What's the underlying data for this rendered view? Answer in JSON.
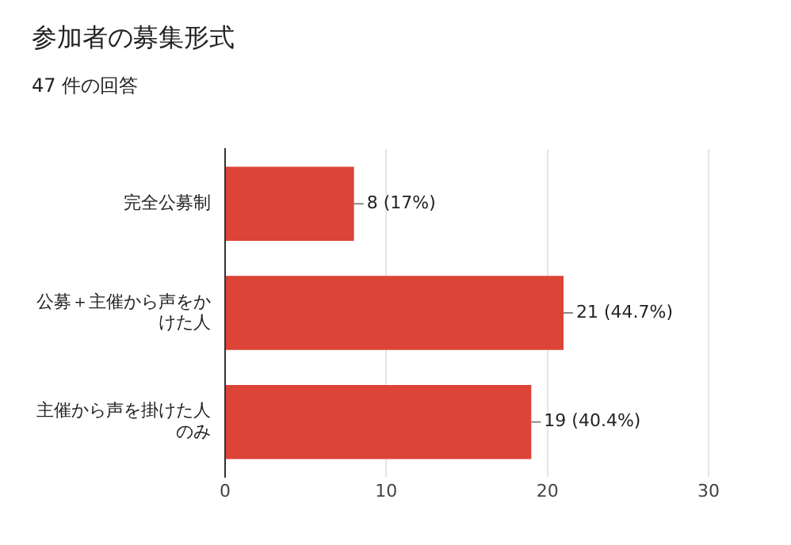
{
  "chart_data": {
    "type": "bar",
    "orientation": "horizontal",
    "title": "参加者の募集形式",
    "subtitle": "47 件の回答",
    "categories": [
      "完全公募制",
      "公募＋主催から声をかけた人",
      "主催から声を掛けた人のみ"
    ],
    "values": [
      8,
      21,
      19
    ],
    "color": "#db4437",
    "value_labels": [
      "8 (17%)",
      "21 (44.7%)",
      "19 (40.4%)"
    ],
    "xlim": [
      0,
      30
    ],
    "xticks": [
      0,
      10,
      20,
      30
    ],
    "grid": "x",
    "legend": false
  }
}
